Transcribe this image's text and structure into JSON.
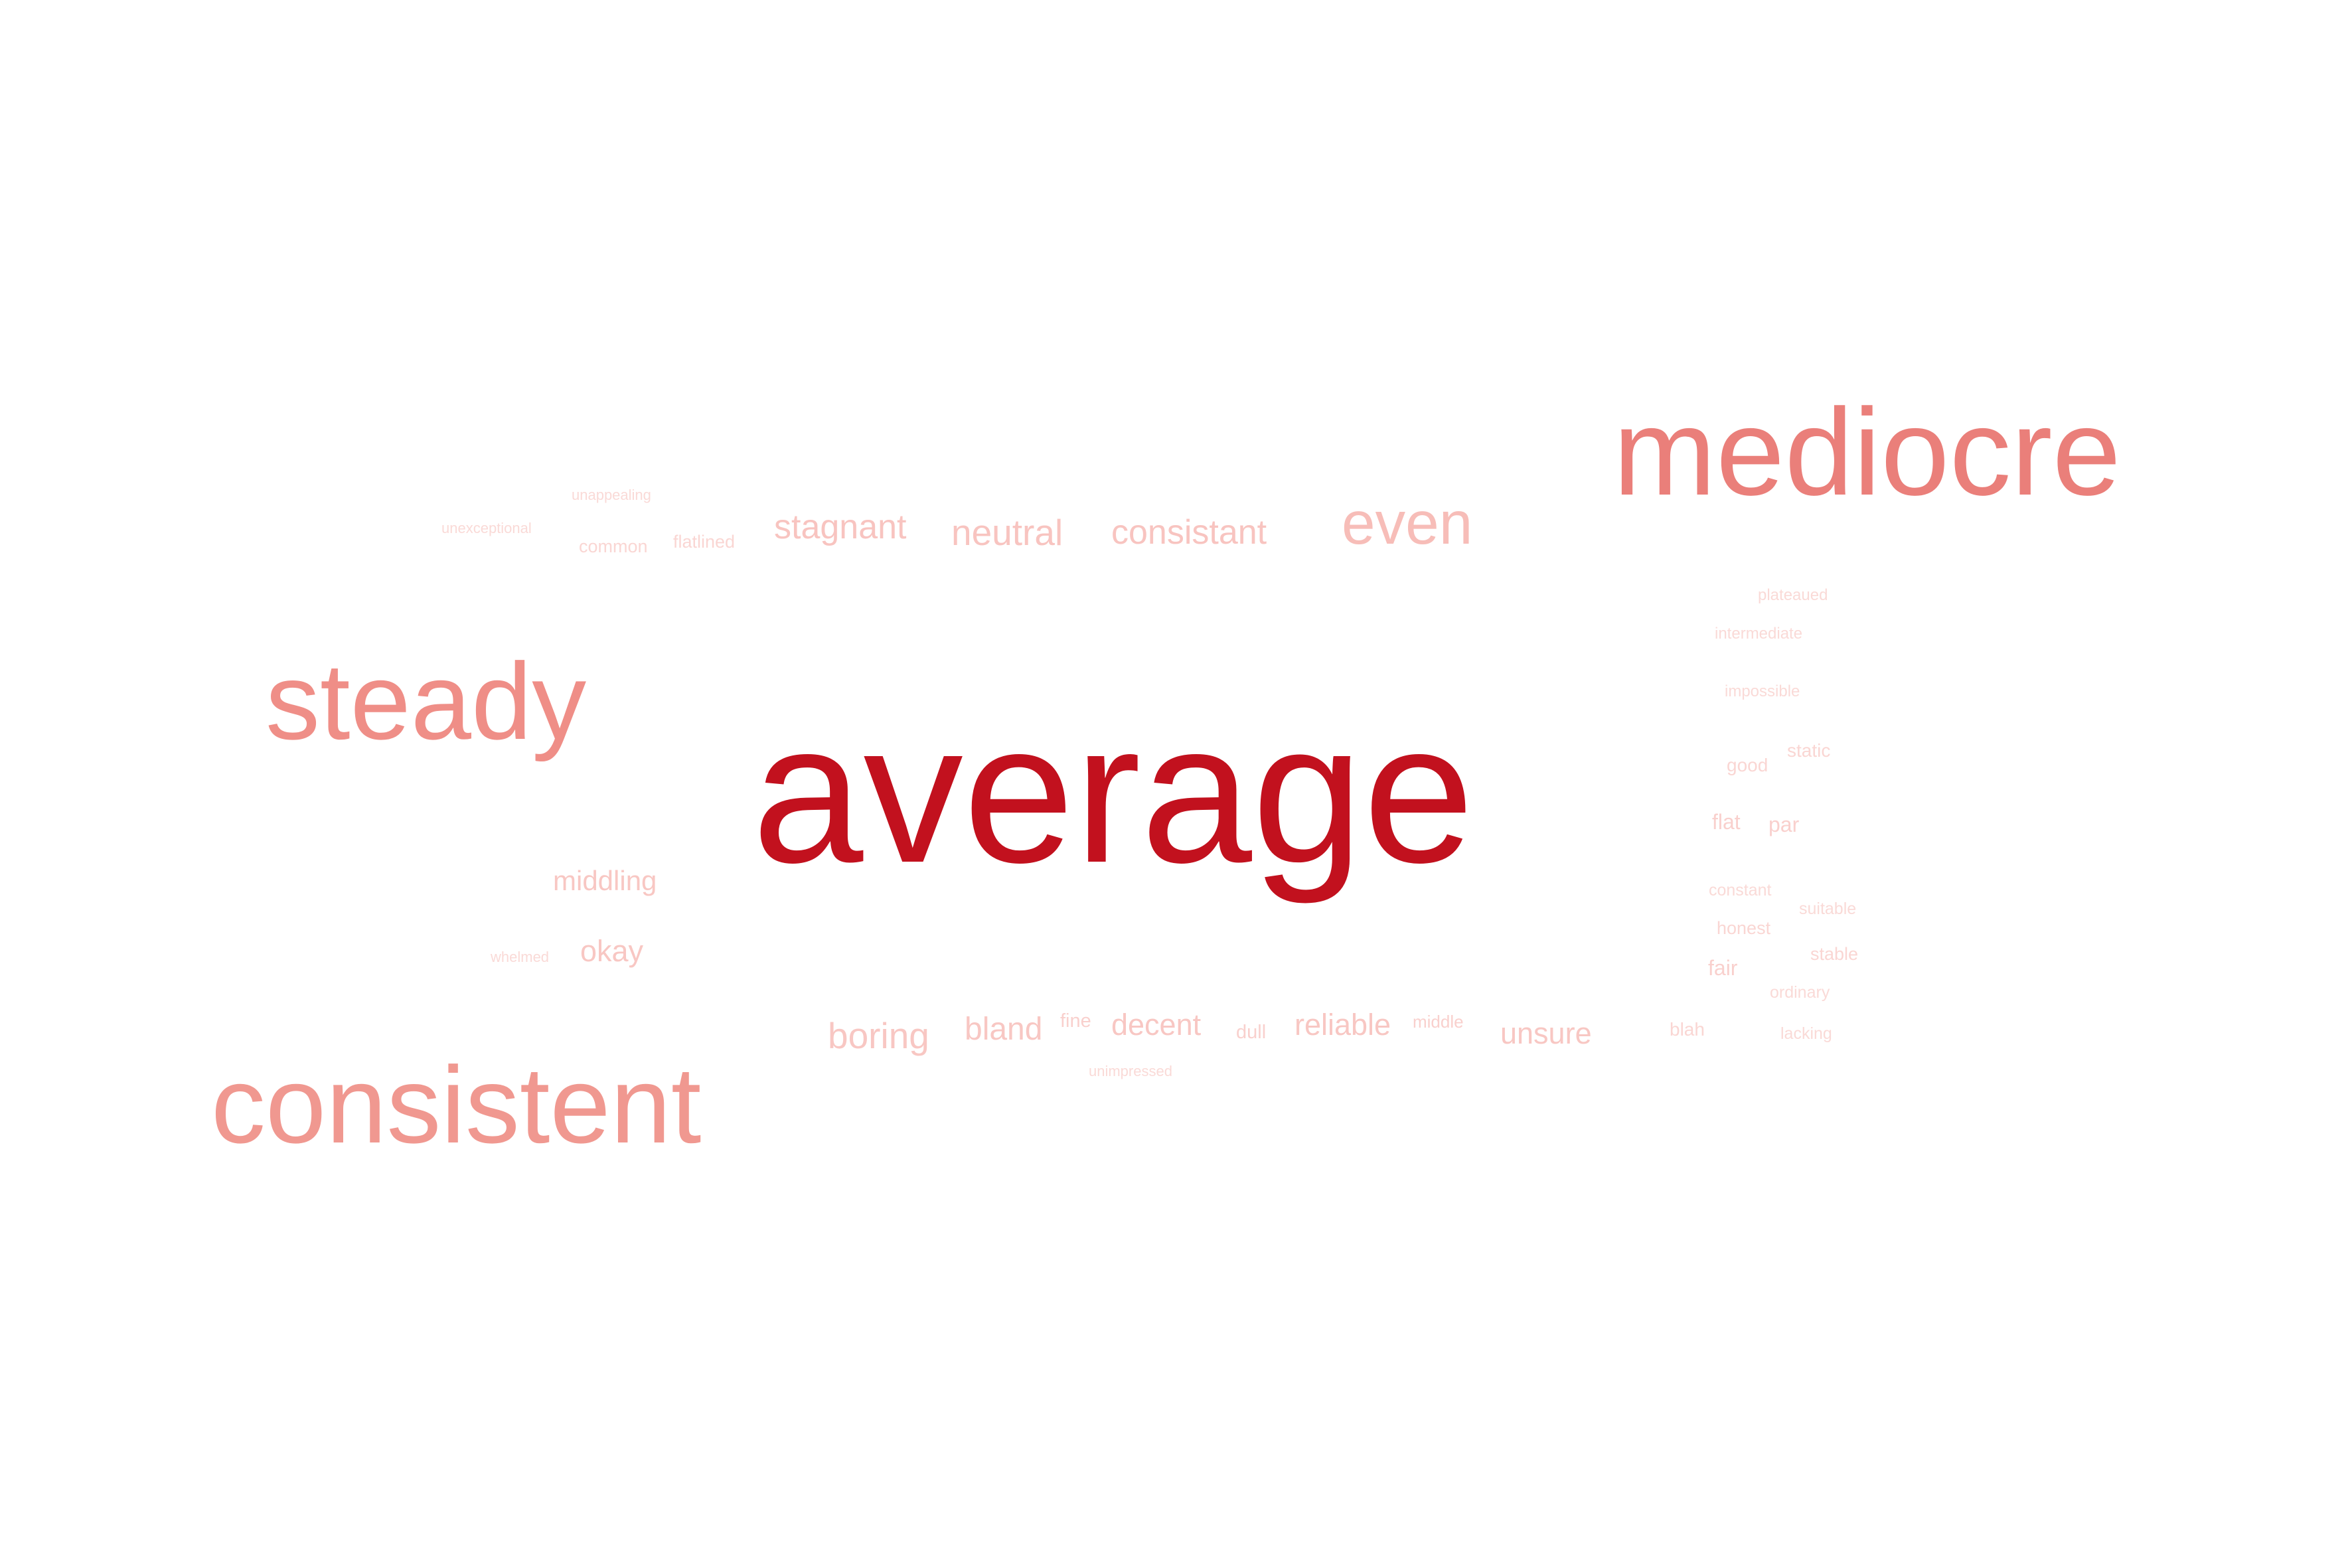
{
  "word_cloud": {
    "words": [
      {
        "text": "average",
        "color": "#c2111e"
      },
      {
        "text": "mediocre",
        "color": "#ea7f7a"
      },
      {
        "text": "steady",
        "color": "#ef8e87"
      },
      {
        "text": "consistent",
        "color": "#f09890"
      },
      {
        "text": "even",
        "color": "#f7bdb8"
      },
      {
        "text": "stagnant",
        "color": "#f8c4c0"
      },
      {
        "text": "neutral",
        "color": "#f8c4c0"
      },
      {
        "text": "consistant",
        "color": "#f8c4c0"
      },
      {
        "text": "middling",
        "color": "#f8c7c3"
      },
      {
        "text": "okay",
        "color": "#f8c7c3"
      },
      {
        "text": "boring",
        "color": "#f8c7c3"
      },
      {
        "text": "bland",
        "color": "#f8c7c3"
      },
      {
        "text": "decent",
        "color": "#f8c7c3"
      },
      {
        "text": "reliable",
        "color": "#f8c7c3"
      },
      {
        "text": "unsure",
        "color": "#f8c7c3"
      },
      {
        "text": "fine",
        "color": "#f9d0cd"
      },
      {
        "text": "dull",
        "color": "#f9d0cd"
      },
      {
        "text": "middle",
        "color": "#f9d0cd"
      },
      {
        "text": "unimpressed",
        "color": "#fadad7"
      },
      {
        "text": "unexceptional",
        "color": "#fadad7"
      },
      {
        "text": "unappealing",
        "color": "#fadad7"
      },
      {
        "text": "common",
        "color": "#fad6d3"
      },
      {
        "text": "flatlined",
        "color": "#fad6d3"
      },
      {
        "text": "whelmed",
        "color": "#fadad7"
      },
      {
        "text": "plateaued",
        "color": "#fadad7"
      },
      {
        "text": "intermediate",
        "color": "#fadad7"
      },
      {
        "text": "impossible",
        "color": "#fadad7"
      },
      {
        "text": "good",
        "color": "#fad6d3"
      },
      {
        "text": "static",
        "color": "#fad6d3"
      },
      {
        "text": "flat",
        "color": "#f9d0cd"
      },
      {
        "text": "par",
        "color": "#f9d0cd"
      },
      {
        "text": "constant",
        "color": "#fadad7"
      },
      {
        "text": "suitable",
        "color": "#fadad7"
      },
      {
        "text": "honest",
        "color": "#fad6d3"
      },
      {
        "text": "stable",
        "color": "#fad6d3"
      },
      {
        "text": "fair",
        "color": "#f9d0cd"
      },
      {
        "text": "ordinary",
        "color": "#fadad7"
      },
      {
        "text": "blah",
        "color": "#fad6d3"
      },
      {
        "text": "lacking",
        "color": "#fadad7"
      }
    ]
  }
}
